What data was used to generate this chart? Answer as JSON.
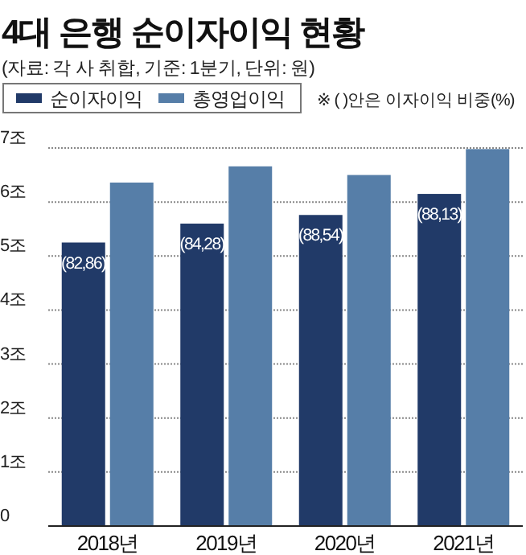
{
  "chart_data": {
    "type": "bar",
    "title": "4대 은행 순이자이익 현황",
    "subtitle": "(자료: 각 사 취합, 기준: 1분기, 단위: 원)",
    "annotations": [
      "※ ( )안은 이자이익 비중(%)",
      {
        "text": "(82,86)",
        "x": "2018년",
        "y": 5.25
      },
      {
        "text": "(84,28)",
        "x": "2019년",
        "y": 5.6
      },
      {
        "text": "(88,54)",
        "x": "2020년",
        "y": 5.76
      },
      {
        "text": "(88,13)",
        "x": "2021년",
        "y": 6.15
      }
    ],
    "categories": [
      "2018년",
      "2019년",
      "2020년",
      "2021년"
    ],
    "series": [
      {
        "name": "순이자이익",
        "color": "#213a68",
        "values": [
          5.25,
          5.6,
          5.76,
          6.15
        ]
      },
      {
        "name": "총영업이익",
        "color": "#567ea8",
        "values": [
          6.36,
          6.66,
          6.5,
          6.98
        ]
      }
    ],
    "ylim": [
      0,
      7
    ],
    "yticks": [
      0,
      {
        "value": 1,
        "label": "1조"
      },
      {
        "value": 2,
        "label": "2조"
      },
      {
        "value": 3,
        "label": "3조"
      },
      {
        "value": 4,
        "label": "4조"
      },
      {
        "value": 5,
        "label": "5조"
      },
      {
        "value": 6,
        "label": "6조"
      },
      {
        "value": 7,
        "label": "7조"
      }
    ],
    "grid": "y",
    "legend": "top left"
  }
}
